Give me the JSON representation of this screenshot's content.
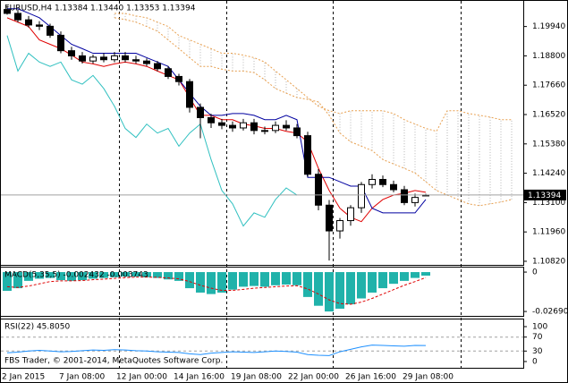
{
  "chart_data": [
    {
      "type": "candlestick",
      "title": "EURUSD,H4  1.13384 1.13440 1.13353 1.13394",
      "ylim": [
        1.1068,
        1.2097
      ],
      "yticks": [
        {
          "value": 1.1994,
          "label": "1.19940"
        },
        {
          "value": 1.188,
          "label": "1.18800"
        },
        {
          "value": 1.1766,
          "label": "1.17660"
        },
        {
          "value": 1.1652,
          "label": "1.16520"
        },
        {
          "value": 1.1538,
          "label": "1.15380"
        },
        {
          "value": 1.1424,
          "label": "1.14240"
        },
        {
          "value": 1.131,
          "label": "1.13100"
        },
        {
          "value": 1.1196,
          "label": "1.11960"
        },
        {
          "value": 1.1082,
          "label": "1.10820"
        }
      ],
      "last_price": {
        "value": 1.13394,
        "label": "1.13394"
      },
      "candle_color": "#000000",
      "up_color": "#ffffff",
      "down_color": "#000000",
      "open": [
        1.206,
        1.2045,
        1.202,
        1.2,
        1.1995,
        1.196,
        1.19,
        1.188,
        1.186,
        1.1875,
        1.1865,
        1.188,
        1.1865,
        1.186,
        1.185,
        1.183,
        1.18,
        1.178,
        1.168,
        1.164,
        1.162,
        1.161,
        1.16,
        1.162,
        1.159,
        1.159,
        1.161,
        1.16,
        1.157,
        1.142,
        1.13,
        1.12,
        1.124,
        1.129,
        1.138,
        1.14,
        1.138,
        1.136,
        1.131,
        1.13384
      ],
      "high": [
        1.2075,
        1.206,
        1.2035,
        1.2015,
        1.2005,
        1.1975,
        1.1915,
        1.1895,
        1.1885,
        1.189,
        1.1895,
        1.1895,
        1.188,
        1.187,
        1.186,
        1.184,
        1.181,
        1.179,
        1.1695,
        1.1655,
        1.1635,
        1.1625,
        1.1635,
        1.1635,
        1.1605,
        1.1625,
        1.163,
        1.1615,
        1.1585,
        1.144,
        1.132,
        1.125,
        1.13,
        1.139,
        1.142,
        1.1415,
        1.1395,
        1.1375,
        1.1345,
        1.1344
      ],
      "low": [
        1.204,
        1.201,
        1.199,
        1.198,
        1.195,
        1.189,
        1.1865,
        1.185,
        1.185,
        1.1855,
        1.1855,
        1.1855,
        1.185,
        1.184,
        1.182,
        1.179,
        1.1765,
        1.166,
        1.156,
        1.16,
        1.1595,
        1.1585,
        1.159,
        1.1575,
        1.1575,
        1.158,
        1.159,
        1.156,
        1.141,
        1.128,
        1.1085,
        1.117,
        1.122,
        1.127,
        1.1365,
        1.137,
        1.135,
        1.13,
        1.1295,
        1.13353
      ],
      "close": [
        1.2045,
        1.202,
        1.2,
        1.1995,
        1.196,
        1.19,
        1.188,
        1.186,
        1.1875,
        1.1865,
        1.188,
        1.1865,
        1.186,
        1.185,
        1.183,
        1.18,
        1.178,
        1.168,
        1.164,
        1.162,
        1.161,
        1.16,
        1.162,
        1.159,
        1.159,
        1.161,
        1.16,
        1.157,
        1.142,
        1.13,
        1.12,
        1.124,
        1.129,
        1.138,
        1.14,
        1.138,
        1.136,
        1.131,
        1.133,
        1.13394
      ],
      "lines": [
        {
          "color": "#e00000",
          "values": [
            1.2028,
            1.2011,
            1.1994,
            1.1942,
            1.1925,
            1.1908,
            1.1883,
            1.1856,
            1.1849,
            1.1839,
            1.1849,
            1.1856,
            1.1849,
            1.1839,
            1.1821,
            1.1804,
            1.1787,
            1.1718,
            1.1649,
            1.1649,
            1.1632,
            1.1632,
            1.1615,
            1.1608,
            1.1598,
            1.1598,
            1.1587,
            1.158,
            1.1546,
            1.1443,
            1.1357,
            1.1288,
            1.1253,
            1.1236,
            1.1288,
            1.1322,
            1.1339,
            1.1346,
            1.1357,
            1.135
          ]
        },
        {
          "color": "#0000a0",
          "values": [
            1.2063,
            1.2063,
            1.2046,
            1.2028,
            1.1994,
            1.1959,
            1.1925,
            1.1908,
            1.189,
            1.189,
            1.189,
            1.189,
            1.189,
            1.1873,
            1.1856,
            1.1839,
            1.1787,
            1.1735,
            1.1684,
            1.1649,
            1.1649,
            1.1656,
            1.1656,
            1.1649,
            1.1632,
            1.1632,
            1.1649,
            1.1632,
            1.1408,
            1.1408,
            1.1408,
            1.1391,
            1.1374,
            1.1374,
            1.1288,
            1.127,
            1.127,
            1.127,
            1.127,
            1.1322
          ]
        },
        {
          "color": "#30c0c0",
          "values": [
            1.1959,
            1.1821,
            1.189,
            1.1856,
            1.1839,
            1.1856,
            1.1787,
            1.177,
            1.1804,
            1.1753,
            1.1684,
            1.1598,
            1.1563,
            1.1615,
            1.158,
            1.1598,
            1.1529,
            1.158,
            1.1615,
            1.1477,
            1.1357,
            1.1305,
            1.1219,
            1.127,
            1.1253,
            1.1322,
            1.1367,
            1.1339
          ]
        }
      ],
      "cloud": {
        "color": "#b4b4b4",
        "edge_color": "#e8a050",
        "span_a": [
          null,
          null,
          null,
          null,
          null,
          null,
          null,
          null,
          null,
          null,
          1.2028,
          1.2021,
          1.2011,
          1.1994,
          1.1976,
          1.1942,
          1.1908,
          1.1873,
          1.1839,
          1.1839,
          1.1828,
          1.1821,
          1.1821,
          1.1815,
          1.1787,
          1.1753,
          1.1735,
          1.1718,
          1.1711,
          1.1701,
          1.1649,
          1.158,
          1.1546,
          1.1529,
          1.1512,
          1.1477,
          1.146,
          1.1443,
          1.1425,
          1.1391,
          1.1357,
          1.1339,
          1.1322,
          1.1305,
          1.1298,
          1.1305,
          1.1312,
          1.1322
        ],
        "span_b": [
          null,
          null,
          null,
          null,
          null,
          null,
          null,
          null,
          null,
          null,
          1.2045,
          1.2045,
          1.2035,
          1.2028,
          1.2011,
          1.1994,
          1.1959,
          1.1942,
          1.1925,
          1.1908,
          1.189,
          1.189,
          1.1883,
          1.1873,
          1.1856,
          1.1821,
          1.1787,
          1.1753,
          1.1718,
          1.1684,
          1.1667,
          1.1656,
          1.1667,
          1.1667,
          1.1667,
          1.1667,
          1.1656,
          1.1632,
          1.1615,
          1.1598,
          1.1587,
          1.1667,
          1.1667,
          1.1656,
          1.1649,
          1.1642,
          1.1632,
          1.1632
        ]
      }
    },
    {
      "type": "macd",
      "title": "MACD(5,35,5) -0.002432 -0.003743",
      "ylim": [
        -0.0293,
        0.0037
      ],
      "yticks": [
        0,
        -0.026903
      ],
      "color": "#20b2aa",
      "signal_color": "#e00000",
      "values": [
        -0.0128,
        -0.011,
        -0.006,
        -0.0045,
        -0.004,
        -0.0055,
        -0.006,
        -0.0055,
        -0.0045,
        -0.004,
        -0.0035,
        -0.003,
        -0.003,
        -0.0035,
        -0.004,
        -0.005,
        -0.006,
        -0.011,
        -0.014,
        -0.015,
        -0.014,
        -0.012,
        -0.01,
        -0.0095,
        -0.01,
        -0.009,
        -0.0085,
        -0.009,
        -0.017,
        -0.023,
        -0.0269,
        -0.025,
        -0.022,
        -0.018,
        -0.014,
        -0.011,
        -0.008,
        -0.006,
        -0.004,
        -0.002432
      ],
      "signal": [
        -0.01,
        -0.0105,
        -0.0095,
        -0.008,
        -0.0065,
        -0.006,
        -0.006,
        -0.0058,
        -0.0052,
        -0.0048,
        -0.0043,
        -0.0038,
        -0.0034,
        -0.0034,
        -0.0036,
        -0.004,
        -0.0046,
        -0.0065,
        -0.009,
        -0.011,
        -0.0125,
        -0.0125,
        -0.0118,
        -0.011,
        -0.0105,
        -0.01,
        -0.0095,
        -0.0093,
        -0.0115,
        -0.015,
        -0.019,
        -0.0215,
        -0.022,
        -0.0205,
        -0.018,
        -0.015,
        -0.012,
        -0.009,
        -0.0065,
        -0.003743
      ]
    },
    {
      "type": "rsi",
      "title": "RSI(22) 45.8050",
      "ylim": [
        0,
        100
      ],
      "yticks": [
        100,
        70,
        30,
        0
      ],
      "levels": [
        70,
        30
      ],
      "color": "#1e90ff",
      "values": [
        25,
        27,
        30,
        32,
        30,
        28,
        29,
        31,
        33,
        32,
        34,
        33,
        31,
        30,
        28,
        27,
        26,
        22,
        20,
        24,
        26,
        28,
        27,
        26,
        28,
        30,
        29,
        27,
        20,
        18,
        17,
        28,
        35,
        42,
        47,
        46,
        45,
        44,
        46,
        45.805
      ],
      "note": "FBS Trader, © 2001-2014, MetaQuotes Software Corp."
    }
  ],
  "time_labels": [
    "2 Jan 2015",
    "7 Jan 08:00",
    "12 Jan 00:00",
    "14 Jan 16:00",
    "19 Jan 08:00",
    "22 Jan 00:00",
    "26 Jan 16:00",
    "29 Jan 08:00"
  ]
}
